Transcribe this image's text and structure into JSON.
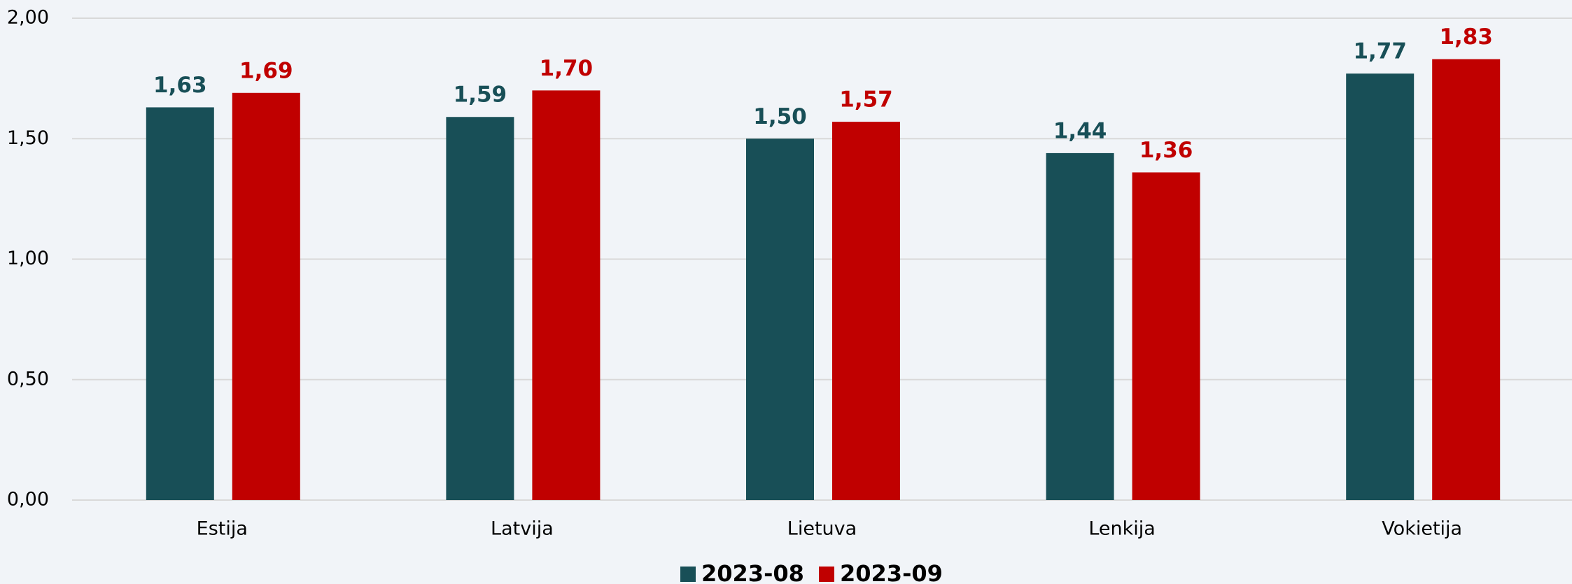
{
  "chart_data": {
    "type": "bar",
    "categories": [
      "Estija",
      "Latvija",
      "Lietuva",
      "Lenkija",
      "Vokietija"
    ],
    "series": [
      {
        "name": "2023-08",
        "color": "#184f57",
        "values": [
          1.63,
          1.59,
          1.5,
          1.44,
          1.77
        ],
        "value_labels": [
          "1,63",
          "1,59",
          "1,50",
          "1,44",
          "1,77"
        ]
      },
      {
        "name": "2023-09",
        "color": "#c00000",
        "values": [
          1.69,
          1.7,
          1.57,
          1.36,
          1.83
        ],
        "value_labels": [
          "1,69",
          "1,70",
          "1,57",
          "1,36",
          "1,83"
        ]
      }
    ],
    "ylim": [
      0,
      2
    ],
    "yticks": [
      {
        "value": 0,
        "label": "0,00"
      },
      {
        "value": 0.5,
        "label": "0,50"
      },
      {
        "value": 1,
        "label": "1,00"
      },
      {
        "value": 1.5,
        "label": "1,50"
      },
      {
        "value": 2,
        "label": "2,00"
      }
    ],
    "grid": true,
    "legend": "bottom"
  }
}
